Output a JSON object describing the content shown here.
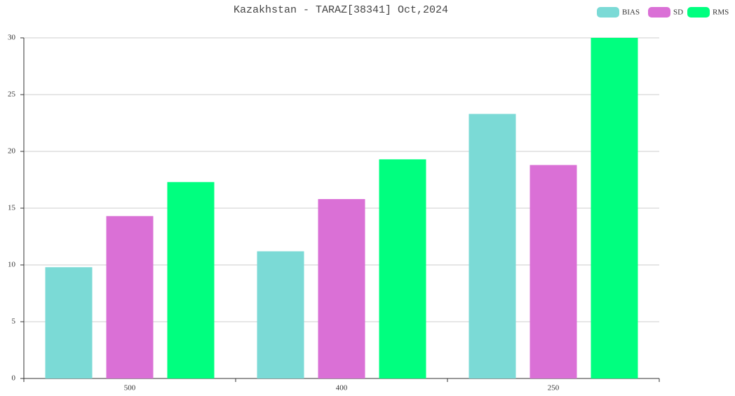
{
  "chart_data": {
    "type": "bar",
    "title": "Kazakhstan - TARAZ[38341] Oct,2024",
    "categories": [
      "500",
      "400",
      "250"
    ],
    "series": [
      {
        "name": "BIAS",
        "color": "#7bdad6",
        "values": [
          9.8,
          11.2,
          23.3
        ]
      },
      {
        "name": "SD",
        "color": "#da70d6",
        "values": [
          14.3,
          15.8,
          18.8
        ]
      },
      {
        "name": "RMS",
        "color": "#00ff7f",
        "values": [
          17.3,
          19.3,
          30
        ]
      }
    ],
    "ylim": [
      0,
      30
    ],
    "yticks": [
      0,
      5,
      10,
      15,
      20,
      25,
      30
    ],
    "grid": true,
    "legend": "top-right"
  }
}
